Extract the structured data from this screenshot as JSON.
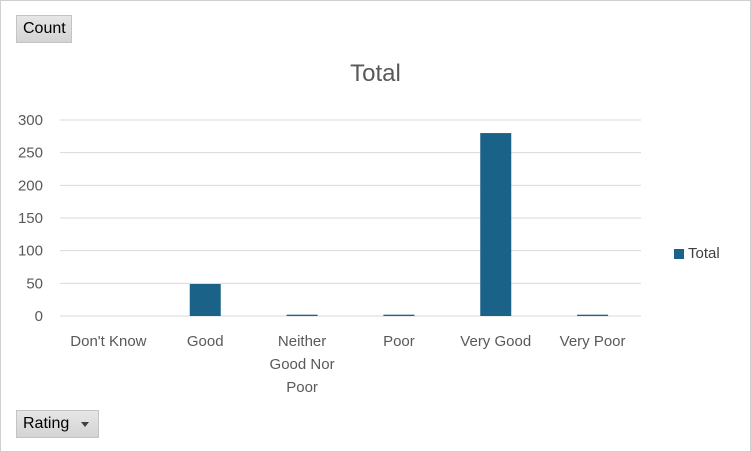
{
  "pivot": {
    "value_field_label": "Count",
    "axis_field_label": "Rating"
  },
  "chart_data": {
    "type": "bar",
    "title": "Total",
    "xlabel": "",
    "ylabel": "",
    "categories": [
      "Don't Know",
      "Good",
      "Neither Good Nor Poor",
      "Poor",
      "Very Good",
      "Very Poor"
    ],
    "series": [
      {
        "name": "Total",
        "values": [
          0,
          49,
          2,
          2,
          280,
          2
        ],
        "color": "#1a6287"
      }
    ],
    "ylim": [
      0,
      300
    ],
    "yticks": [
      0,
      50,
      100,
      150,
      200,
      250,
      300
    ],
    "grid": true,
    "legend_position": "right"
  },
  "colors": {
    "bar": "#1a6287",
    "grid": "#d9d9d9",
    "tick_text": "#595959"
  }
}
